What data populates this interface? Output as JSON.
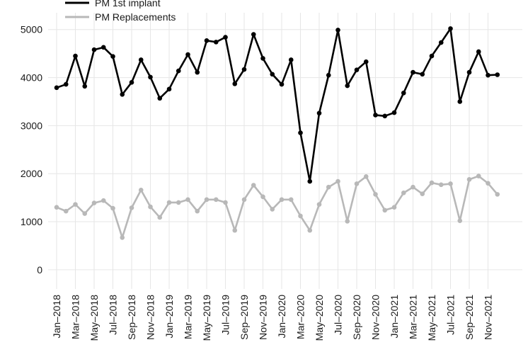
{
  "chart_data": {
    "type": "line",
    "x": [
      "Jan–2018",
      "Feb–2018",
      "Mar–2018",
      "Apr–2018",
      "May–2018",
      "Jun–2018",
      "Jul–2018",
      "Aug–2018",
      "Sep–2018",
      "Oct–2018",
      "Nov–2018",
      "Dec–2018",
      "Jan–2019",
      "Feb–2019",
      "Mar–2019",
      "Apr–2019",
      "May–2019",
      "Jun–2019",
      "Jul–2019",
      "Aug–2019",
      "Sep–2019",
      "Oct–2019",
      "Nov–2019",
      "Dec–2019",
      "Jan–2020",
      "Feb–2020",
      "Mar–2020",
      "Apr–2020",
      "May–2020",
      "Jun–2020",
      "Jul–2020",
      "Aug–2020",
      "Sep–2020",
      "Oct–2020",
      "Nov–2020",
      "Dec–2020",
      "Jan–2021",
      "Feb–2021",
      "Mar–2021",
      "Apr–2021",
      "May–2021",
      "Jun–2021",
      "Jul–2021",
      "Aug–2021",
      "Sep–2021",
      "Oct–2021",
      "Nov–2021",
      "Dec–2021"
    ],
    "tick_labels": [
      "Jan–2018",
      "Mar–2018",
      "May–2018",
      "Jul–2018",
      "Sep–2018",
      "Nov–2018",
      "Jan–2019",
      "Mar–2019",
      "May–2019",
      "Jul–2019",
      "Sep–2019",
      "Nov–2019",
      "Jan–2020",
      "Mar–2020",
      "May–2020",
      "Jul–2020",
      "Sep–2020",
      "Nov–2020",
      "Jan–2021",
      "Mar–2021",
      "May–2021",
      "Jul–2021",
      "Sep–2021",
      "Nov–2021"
    ],
    "y_ticks": [
      0,
      1000,
      2000,
      3000,
      4000,
      5000
    ],
    "ylim": [
      -400,
      5350
    ],
    "grid": true,
    "legend": "top-left",
    "series": [
      {
        "name": "PM 1st implant",
        "color": "#000000",
        "values": [
          3790,
          3860,
          4450,
          3820,
          4580,
          4630,
          4440,
          3650,
          3900,
          4370,
          4010,
          3570,
          3760,
          4140,
          4480,
          4110,
          4770,
          4740,
          4840,
          3870,
          4170,
          4900,
          4400,
          4070,
          3860,
          4370,
          2850,
          1840,
          3260,
          4050,
          4990,
          3830,
          4160,
          4330,
          3220,
          3200,
          3270,
          3680,
          4110,
          4070,
          4450,
          4730,
          5020,
          3500,
          4110,
          4540,
          4050,
          4060
        ]
      },
      {
        "name": "PM Replacements",
        "color": "#b8b8b8",
        "values": [
          1300,
          1220,
          1360,
          1170,
          1390,
          1440,
          1280,
          670,
          1290,
          1660,
          1310,
          1090,
          1400,
          1400,
          1460,
          1220,
          1460,
          1460,
          1400,
          820,
          1460,
          1760,
          1520,
          1260,
          1460,
          1460,
          1120,
          820,
          1360,
          1720,
          1840,
          1010,
          1790,
          1940,
          1570,
          1240,
          1300,
          1600,
          1720,
          1580,
          1810,
          1770,
          1790,
          1020,
          1880,
          1950,
          1800,
          1570
        ]
      }
    ]
  }
}
